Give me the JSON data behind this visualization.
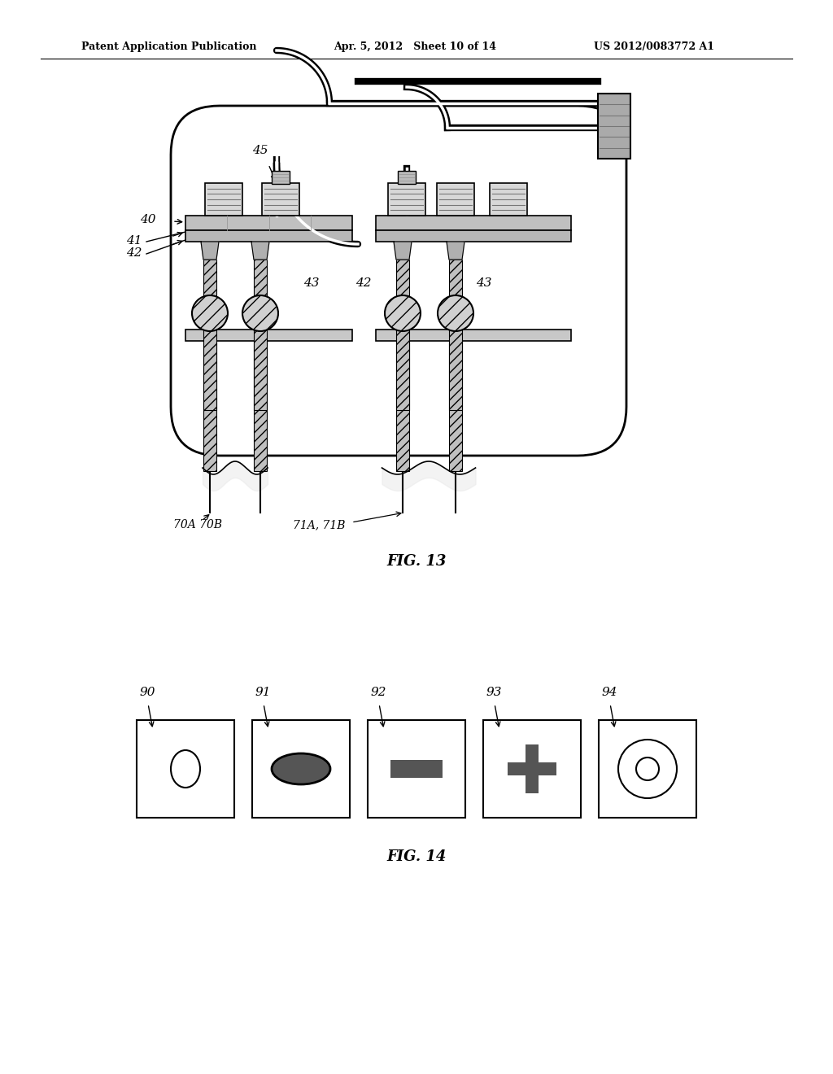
{
  "bg_color": "#ffffff",
  "header_left": "Patent Application Publication",
  "header_mid": "Apr. 5, 2012   Sheet 10 of 14",
  "header_right": "US 2012/0083772 A1",
  "fig13_caption": "FIG. 13",
  "fig14_caption": "FIG. 14",
  "label_40": "40",
  "label_41": "41",
  "label_42": "42",
  "label_43": "43",
  "label_45": "45",
  "label_70A70B": "70A 70B",
  "label_71A71B": "71A, 71B",
  "fig14_labels": [
    "90",
    "91",
    "92",
    "93",
    "94"
  ],
  "text_color": "#000000",
  "line_color": "#000000"
}
